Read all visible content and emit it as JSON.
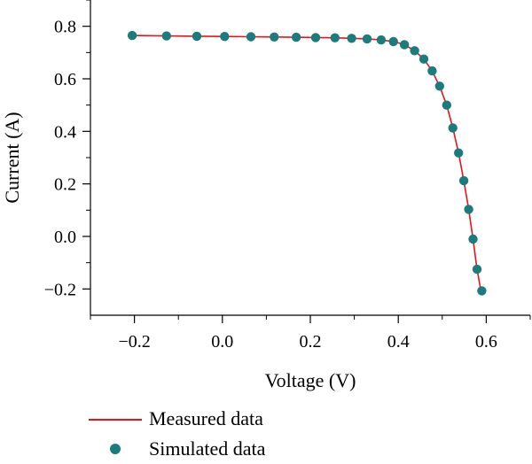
{
  "chart_data": {
    "type": "line",
    "title": "",
    "xlabel": "Voltage (V)",
    "ylabel": "Current (A)",
    "xlim": [
      -0.3,
      0.7
    ],
    "ylim": [
      -0.3,
      0.9
    ],
    "xticks": [
      -0.2,
      0.0,
      0.2,
      0.4,
      0.6
    ],
    "xtick_labels": [
      "−0.2",
      "0.0",
      "0.2",
      "0.4",
      "0.6"
    ],
    "yticks": [
      -0.2,
      0.0,
      0.2,
      0.4,
      0.6,
      0.8
    ],
    "ytick_labels": [
      "−0.2",
      "0.0",
      "0.2",
      "0.4",
      "0.6",
      "0.8"
    ],
    "minor_xticks": [
      -0.3,
      -0.1,
      0.1,
      0.3,
      0.5,
      0.7
    ],
    "minor_yticks": [
      -0.1,
      0.1,
      0.3,
      0.5,
      0.7,
      0.9
    ],
    "grid": false,
    "legend_position": "bottom-left below plot",
    "series": [
      {
        "name": "Measured data",
        "kind": "line",
        "color": "#e8141a",
        "x": [
          -0.205,
          -0.127,
          -0.058,
          0.005,
          0.065,
          0.118,
          0.168,
          0.212,
          0.256,
          0.294,
          0.329,
          0.361,
          0.389,
          0.414,
          0.437,
          0.458,
          0.477,
          0.494,
          0.51,
          0.524,
          0.537,
          0.549,
          0.56,
          0.57,
          0.579,
          0.587,
          0.592
        ],
        "y": [
          0.765,
          0.763,
          0.762,
          0.761,
          0.76,
          0.759,
          0.758,
          0.757,
          0.756,
          0.754,
          0.752,
          0.748,
          0.742,
          0.73,
          0.707,
          0.675,
          0.63,
          0.572,
          0.5,
          0.413,
          0.318,
          0.212,
          0.103,
          -0.01,
          -0.125,
          -0.2,
          -0.21
        ]
      },
      {
        "name": "Simulated data",
        "kind": "scatter",
        "color": "#1a7c7c",
        "x": [
          -0.205,
          -0.127,
          -0.058,
          0.005,
          0.065,
          0.118,
          0.168,
          0.212,
          0.256,
          0.294,
          0.329,
          0.361,
          0.389,
          0.414,
          0.437,
          0.458,
          0.477,
          0.494,
          0.51,
          0.524,
          0.537,
          0.549,
          0.56,
          0.57,
          0.579,
          0.59
        ],
        "y": [
          0.765,
          0.763,
          0.762,
          0.761,
          0.76,
          0.759,
          0.758,
          0.757,
          0.756,
          0.754,
          0.752,
          0.748,
          0.742,
          0.73,
          0.707,
          0.675,
          0.63,
          0.572,
          0.5,
          0.413,
          0.318,
          0.212,
          0.103,
          -0.01,
          -0.125,
          -0.207
        ]
      }
    ]
  },
  "legend": {
    "measured_label": "Measured data",
    "simulated_label": "Simulated data"
  }
}
